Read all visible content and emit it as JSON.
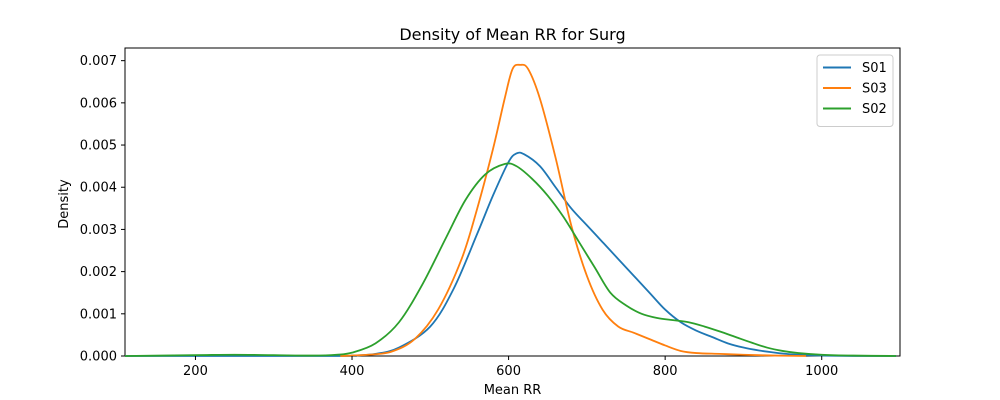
{
  "chart_data": {
    "type": "line",
    "title": "Density of Mean RR for Surg",
    "xlabel": "Mean RR",
    "ylabel": "Density",
    "xlim": [
      110,
      1100
    ],
    "ylim": [
      0,
      0.0073
    ],
    "xticks": [
      200,
      400,
      600,
      800,
      1000
    ],
    "xtick_labels": [
      "200",
      "400",
      "600",
      "800",
      "1000"
    ],
    "yticks": [
      0,
      0.001,
      0.002,
      0.003,
      0.004,
      0.005,
      0.006,
      0.007
    ],
    "ytick_labels": [
      "0.000",
      "0.001",
      "0.002",
      "0.003",
      "0.004",
      "0.005",
      "0.006",
      "0.007"
    ],
    "grid": false,
    "legend": "top-right",
    "series": [
      {
        "name": "S01",
        "color": "#1f77b4",
        "points": [
          [
            110,
            0
          ],
          [
            380,
            0
          ],
          [
            400,
            1e-05
          ],
          [
            430,
            5e-05
          ],
          [
            460,
            0.0002
          ],
          [
            500,
            0.0007
          ],
          [
            530,
            0.0016
          ],
          [
            560,
            0.0029
          ],
          [
            580,
            0.0038
          ],
          [
            600,
            0.0046
          ],
          [
            610,
            0.0048
          ],
          [
            620,
            0.00478
          ],
          [
            640,
            0.0045
          ],
          [
            660,
            0.004
          ],
          [
            680,
            0.0035
          ],
          [
            700,
            0.0031
          ],
          [
            720,
            0.0027
          ],
          [
            740,
            0.0023
          ],
          [
            760,
            0.0019
          ],
          [
            780,
            0.0015
          ],
          [
            800,
            0.0011
          ],
          [
            820,
            0.0008
          ],
          [
            840,
            0.0006
          ],
          [
            860,
            0.00045
          ],
          [
            880,
            0.0003
          ],
          [
            900,
            0.0002
          ],
          [
            920,
            0.00013
          ],
          [
            940,
            8e-05
          ],
          [
            960,
            4e-05
          ],
          [
            980,
            2e-05
          ],
          [
            1000,
            1e-05
          ],
          [
            1040,
            0
          ],
          [
            1095,
            0
          ]
        ]
      },
      {
        "name": "S03",
        "color": "#ff7f0e",
        "points": [
          [
            385,
            0
          ],
          [
            420,
            3e-05
          ],
          [
            450,
            0.0001
          ],
          [
            480,
            0.0004
          ],
          [
            510,
            0.0011
          ],
          [
            540,
            0.0023
          ],
          [
            560,
            0.0035
          ],
          [
            580,
            0.0049
          ],
          [
            595,
            0.0061
          ],
          [
            605,
            0.0068
          ],
          [
            615,
            0.0069
          ],
          [
            625,
            0.0068
          ],
          [
            640,
            0.0061
          ],
          [
            660,
            0.0047
          ],
          [
            680,
            0.0031
          ],
          [
            700,
            0.0019
          ],
          [
            720,
            0.0011
          ],
          [
            740,
            0.0007
          ],
          [
            760,
            0.00055
          ],
          [
            780,
            0.0004
          ],
          [
            800,
            0.00025
          ],
          [
            820,
            0.00012
          ],
          [
            840,
            7e-05
          ],
          [
            870,
            5e-05
          ],
          [
            900,
            3e-05
          ],
          [
            940,
            1e-05
          ],
          [
            980,
            0
          ]
        ]
      },
      {
        "name": "S02",
        "color": "#2ca02c",
        "points": [
          [
            110,
            0
          ],
          [
            200,
            2e-05
          ],
          [
            250,
            3e-05
          ],
          [
            300,
            2e-05
          ],
          [
            350,
            1e-05
          ],
          [
            380,
            3e-05
          ],
          [
            400,
            8e-05
          ],
          [
            430,
            0.0003
          ],
          [
            460,
            0.0008
          ],
          [
            490,
            0.0017
          ],
          [
            520,
            0.0028
          ],
          [
            545,
            0.0037
          ],
          [
            570,
            0.0043
          ],
          [
            595,
            0.00455
          ],
          [
            610,
            0.0045
          ],
          [
            630,
            0.0042
          ],
          [
            650,
            0.0038
          ],
          [
            670,
            0.0033
          ],
          [
            690,
            0.0027
          ],
          [
            710,
            0.0021
          ],
          [
            730,
            0.0015
          ],
          [
            750,
            0.0012
          ],
          [
            770,
            0.001
          ],
          [
            790,
            0.0009
          ],
          [
            810,
            0.00085
          ],
          [
            830,
            0.0008
          ],
          [
            850,
            0.0007
          ],
          [
            870,
            0.00058
          ],
          [
            890,
            0.00045
          ],
          [
            910,
            0.00032
          ],
          [
            930,
            0.0002
          ],
          [
            950,
            0.00012
          ],
          [
            970,
            7e-05
          ],
          [
            1000,
            3e-05
          ],
          [
            1040,
            1e-05
          ],
          [
            1095,
            0
          ]
        ]
      }
    ]
  }
}
